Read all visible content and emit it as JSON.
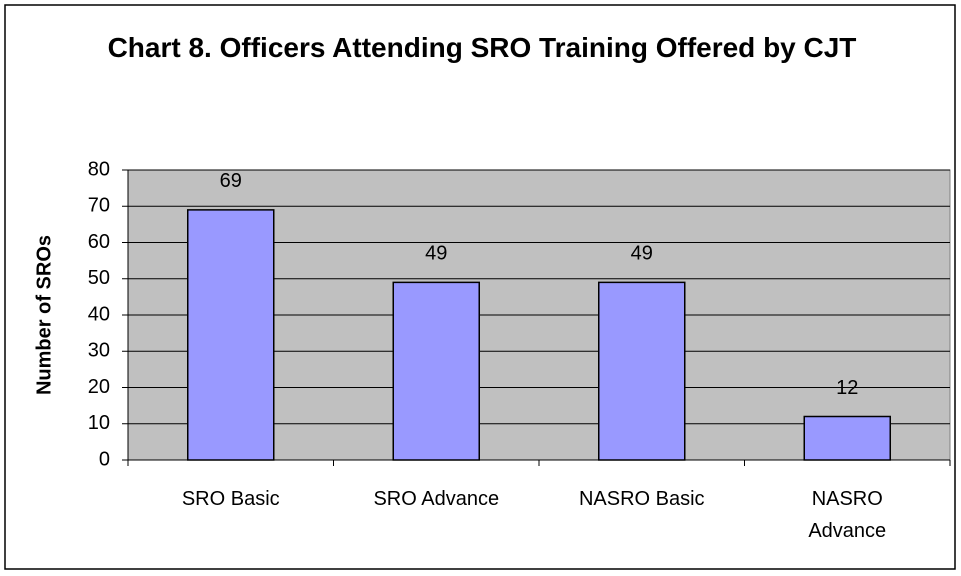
{
  "chart_data": {
    "type": "bar",
    "title": "Chart 8. Officers Attending SRO Training Offered by CJT",
    "y_label": "Number of SROs",
    "categories": [
      "SRO Basic",
      "SRO Advance",
      "NASRO Basic",
      "NASRO Advance"
    ],
    "values": [
      69,
      49,
      49,
      12
    ],
    "color": "#9999ff",
    "ylim": [
      0,
      80
    ],
    "yticks": [
      0,
      10,
      20,
      30,
      40,
      50,
      60,
      70,
      80
    ],
    "grid": true
  }
}
